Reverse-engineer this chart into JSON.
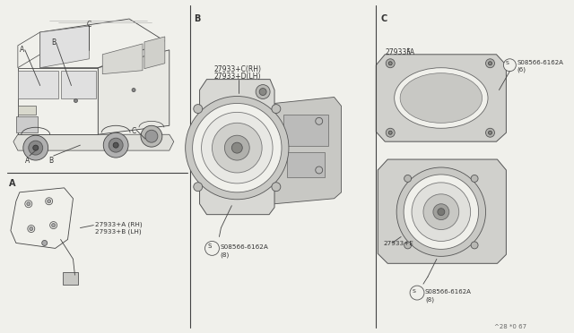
{
  "bg_color": "#f0f0eb",
  "line_color": "#444444",
  "text_color": "#333333",
  "sec_b_label": "B",
  "sec_c_label": "C",
  "sec_a_label": "A",
  "part_A_rh": "27933+A (RH)",
  "part_A_lh": "27933+B (LH)",
  "part_B_rh": "27933+C(RH)",
  "part_B_lh": "27933+D(LH)",
  "part_B_screw": "S08566-6162A",
  "part_B_screw_n": "(8)",
  "part_C_bracket": "27933FA",
  "part_C_screw1": "S08566-6162A",
  "part_C_screw1_n": "(6)",
  "part_C_speaker": "27933+E",
  "part_C_screw2": "S08566-6162A",
  "part_C_screw2_n": "(8)",
  "footer": "^28 *0 67"
}
